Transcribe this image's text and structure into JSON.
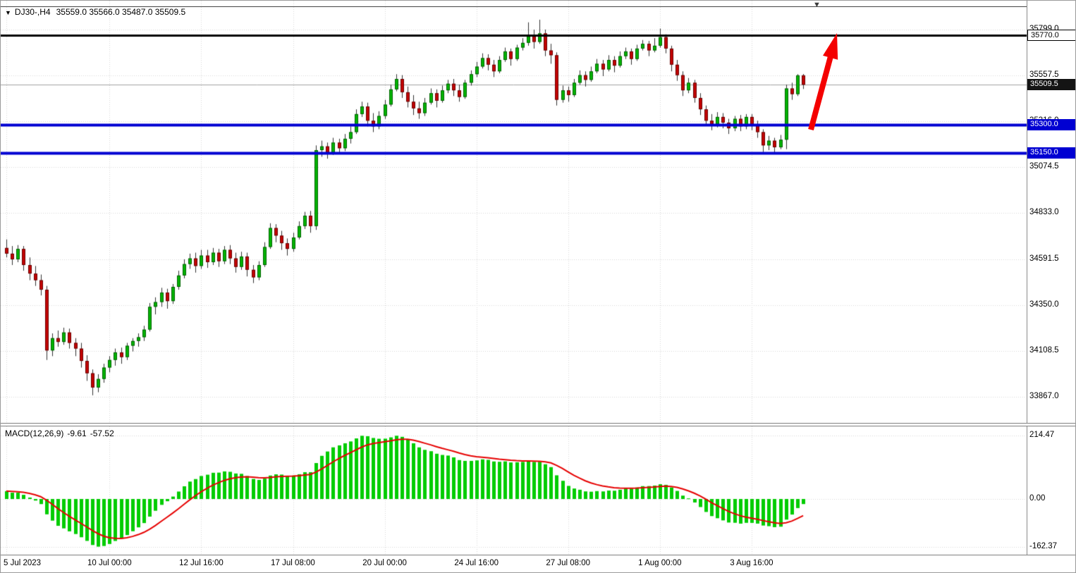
{
  "header": {
    "collapse_icon": "▼",
    "symbol": "DJ30-,H4",
    "ohlc": "35559.0 35566.0 35487.0 35509.5"
  },
  "macd": {
    "title": "MACD(12,26,9)",
    "value_main": "-9.61",
    "value_signal": "-57.52"
  },
  "chart_data": {
    "type": "candlestick+macd",
    "symbol": "DJ30-",
    "timeframe": "H4",
    "first_x": 8,
    "bar_spacing": 8.13,
    "colors": {
      "up": "#00b400",
      "down": "#c40000",
      "wick": "#303030",
      "grid": "#d6d6d6",
      "hist": "#00cc00",
      "signal": "#e60000",
      "bid": "#a0a0a0",
      "support": "#0000d2",
      "resistance": "#000000",
      "arrow": "#f40000"
    },
    "price_pane": {
      "ylim": [
        33725,
        35952
      ],
      "grid_base": 33867.0,
      "grid_step": 241.5,
      "axis_labels": [
        "35799.0",
        "35557.5",
        "35316.0",
        "35074.5",
        "34833.0",
        "34591.5",
        "34350.0",
        "34108.5",
        "33867.0"
      ],
      "lines": [
        {
          "key": "resistance",
          "price": 35770.0,
          "label": "35770.0",
          "color": "#000000",
          "width": 3
        },
        {
          "key": "bid",
          "price": 35509.5,
          "label": "35509.5",
          "color": "#a0a0a0",
          "width": 1
        },
        {
          "key": "support1",
          "price": 35300.0,
          "label": "35300.0",
          "color": "#0000d2",
          "width": 4
        },
        {
          "key": "support2",
          "price": 35150.0,
          "label": "35150.0",
          "color": "#0000d2",
          "width": 4
        }
      ]
    },
    "macd_pane": {
      "ylim": [
        -188.3,
        245.4
      ],
      "params": "12,26,9",
      "axis_labels": [
        "214.47",
        "0.00",
        "-162.37"
      ]
    },
    "x_ticks": [
      {
        "i": 0,
        "label": "5 Jul 2023"
      },
      {
        "i": 18,
        "label": "10 Jul 00:00"
      },
      {
        "i": 34,
        "label": "12 Jul 16:00"
      },
      {
        "i": 50,
        "label": "17 Jul 08:00"
      },
      {
        "i": 66,
        "label": "20 Jul 00:00"
      },
      {
        "i": 82,
        "label": "24 Jul 16:00"
      },
      {
        "i": 98,
        "label": "27 Jul 08:00"
      },
      {
        "i": 114,
        "label": "1 Aug 00:00"
      },
      {
        "i": 130,
        "label": "3 Aug 16:00"
      }
    ],
    "candles": [
      [
        34650,
        34695,
        34600,
        34620
      ],
      [
        34620,
        34660,
        34560,
        34590
      ],
      [
        34590,
        34665,
        34575,
        34645
      ],
      [
        34645,
        34660,
        34530,
        34560
      ],
      [
        34560,
        34600,
        34480,
        34515
      ],
      [
        34515,
        34555,
        34450,
        34480
      ],
      [
        34480,
        34510,
        34400,
        34430
      ],
      [
        34430,
        34450,
        34060,
        34110
      ],
      [
        34110,
        34200,
        34080,
        34175
      ],
      [
        34175,
        34215,
        34130,
        34155
      ],
      [
        34155,
        34230,
        34140,
        34205
      ],
      [
        34205,
        34225,
        34120,
        34150
      ],
      [
        34150,
        34175,
        34080,
        34120
      ],
      [
        34120,
        34150,
        34020,
        34055
      ],
      [
        34055,
        34085,
        33950,
        33990
      ],
      [
        33990,
        34010,
        33874,
        33915
      ],
      [
        33915,
        33985,
        33890,
        33960
      ],
      [
        33960,
        34040,
        33940,
        34020
      ],
      [
        34020,
        34080,
        33995,
        34060
      ],
      [
        34060,
        34120,
        34030,
        34100
      ],
      [
        34100,
        34125,
        34040,
        34075
      ],
      [
        34075,
        34150,
        34060,
        34135
      ],
      [
        34135,
        34175,
        34105,
        34160
      ],
      [
        34160,
        34200,
        34130,
        34180
      ],
      [
        34180,
        34240,
        34160,
        34220
      ],
      [
        34220,
        34360,
        34210,
        34340
      ],
      [
        34340,
        34390,
        34300,
        34365
      ],
      [
        34365,
        34440,
        34340,
        34415
      ],
      [
        34415,
        34435,
        34330,
        34370
      ],
      [
        34370,
        34460,
        34355,
        34445
      ],
      [
        34445,
        34530,
        34430,
        34505
      ],
      [
        34505,
        34590,
        34490,
        34565
      ],
      [
        34565,
        34620,
        34540,
        34595
      ],
      [
        34595,
        34625,
        34520,
        34555
      ],
      [
        34555,
        34640,
        34540,
        34610
      ],
      [
        34610,
        34640,
        34545,
        34575
      ],
      [
        34575,
        34650,
        34560,
        34625
      ],
      [
        34625,
        34645,
        34550,
        34580
      ],
      [
        34580,
        34660,
        34565,
        34640
      ],
      [
        34640,
        34665,
        34565,
        34595
      ],
      [
        34595,
        34625,
        34520,
        34550
      ],
      [
        34550,
        34630,
        34535,
        34605
      ],
      [
        34605,
        34625,
        34500,
        34535
      ],
      [
        34535,
        34560,
        34465,
        34495
      ],
      [
        34495,
        34580,
        34480,
        34560
      ],
      [
        34560,
        34680,
        34550,
        34655
      ],
      [
        34655,
        34780,
        34645,
        34755
      ],
      [
        34755,
        34775,
        34680,
        34715
      ],
      [
        34715,
        34740,
        34640,
        34675
      ],
      [
        34675,
        34700,
        34610,
        34645
      ],
      [
        34645,
        34730,
        34630,
        34705
      ],
      [
        34705,
        34790,
        34695,
        34765
      ],
      [
        34765,
        34840,
        34750,
        34820
      ],
      [
        34820,
        34845,
        34730,
        34765
      ],
      [
        34765,
        35190,
        34745,
        35165
      ],
      [
        35165,
        35215,
        35130,
        35185
      ],
      [
        35185,
        35205,
        35120,
        35150
      ],
      [
        35150,
        35230,
        35140,
        35205
      ],
      [
        35205,
        35225,
        35150,
        35175
      ],
      [
        35175,
        35250,
        35160,
        35225
      ],
      [
        35225,
        35290,
        35200,
        35260
      ],
      [
        35260,
        35380,
        35250,
        35355
      ],
      [
        35355,
        35420,
        35340,
        35395
      ],
      [
        35395,
        35415,
        35290,
        35320
      ],
      [
        35320,
        35360,
        35260,
        35290
      ],
      [
        35290,
        35370,
        35275,
        35345
      ],
      [
        35345,
        35430,
        35330,
        35405
      ],
      [
        35405,
        35510,
        35395,
        35485
      ],
      [
        35485,
        35565,
        35475,
        35540
      ],
      [
        35540,
        35560,
        35440,
        35470
      ],
      [
        35470,
        35500,
        35390,
        35420
      ],
      [
        35420,
        35455,
        35350,
        35385
      ],
      [
        35385,
        35420,
        35330,
        35360
      ],
      [
        35360,
        35440,
        35345,
        35415
      ],
      [
        35415,
        35490,
        35405,
        35465
      ],
      [
        35465,
        35485,
        35390,
        35425
      ],
      [
        35425,
        35505,
        35415,
        35480
      ],
      [
        35480,
        35535,
        35465,
        35515
      ],
      [
        35515,
        35540,
        35450,
        35480
      ],
      [
        35480,
        35510,
        35420,
        35445
      ],
      [
        35445,
        35535,
        35435,
        35520
      ],
      [
        35520,
        35585,
        35505,
        35565
      ],
      [
        35565,
        35630,
        35550,
        35605
      ],
      [
        35605,
        35675,
        35595,
        35650
      ],
      [
        35650,
        35670,
        35585,
        35615
      ],
      [
        35615,
        35640,
        35550,
        35580
      ],
      [
        35580,
        35660,
        35570,
        35640
      ],
      [
        35640,
        35705,
        35630,
        35685
      ],
      [
        35685,
        35700,
        35610,
        35645
      ],
      [
        35645,
        35720,
        35635,
        35705
      ],
      [
        35705,
        35755,
        35690,
        35730
      ],
      [
        35730,
        35838,
        35715,
        35765
      ],
      [
        35765,
        35800,
        35700,
        35735
      ],
      [
        35735,
        35852,
        35725,
        35780
      ],
      [
        35780,
        35800,
        35660,
        35690
      ],
      [
        35690,
        35725,
        35620,
        35665
      ],
      [
        35665,
        35680,
        35400,
        35430
      ],
      [
        35430,
        35505,
        35415,
        35480
      ],
      [
        35480,
        35500,
        35420,
        35455
      ],
      [
        35455,
        35540,
        35445,
        35520
      ],
      [
        35520,
        35585,
        35510,
        35560
      ],
      [
        35560,
        35580,
        35500,
        35535
      ],
      [
        35535,
        35605,
        35525,
        35580
      ],
      [
        35580,
        35645,
        35570,
        35620
      ],
      [
        35620,
        35640,
        35555,
        35590
      ],
      [
        35590,
        35665,
        35580,
        35640
      ],
      [
        35640,
        35660,
        35575,
        35610
      ],
      [
        35610,
        35685,
        35600,
        35660
      ],
      [
        35660,
        35705,
        35645,
        35685
      ],
      [
        35685,
        35700,
        35615,
        35645
      ],
      [
        35645,
        35720,
        35635,
        35700
      ],
      [
        35700,
        35745,
        35690,
        35725
      ],
      [
        35725,
        35740,
        35660,
        35690
      ],
      [
        35690,
        35755,
        35680,
        35715
      ],
      [
        35715,
        35805,
        35705,
        35760
      ],
      [
        35760,
        35775,
        35675,
        35700
      ],
      [
        35700,
        35715,
        35580,
        35615
      ],
      [
        35615,
        35640,
        35530,
        35560
      ],
      [
        35560,
        35580,
        35450,
        35480
      ],
      [
        35480,
        35545,
        35465,
        35520
      ],
      [
        35520,
        35535,
        35415,
        35440
      ],
      [
        35440,
        35465,
        35350,
        35380
      ],
      [
        35380,
        35400,
        35295,
        35320
      ],
      [
        35320,
        35355,
        35270,
        35300
      ],
      [
        35300,
        35365,
        35285,
        35340
      ],
      [
        35340,
        35360,
        35280,
        35310
      ],
      [
        35310,
        35330,
        35250,
        35280
      ],
      [
        35280,
        35345,
        35265,
        35330
      ],
      [
        35330,
        35350,
        35265,
        35290
      ],
      [
        35290,
        35355,
        35275,
        35340
      ],
      [
        35340,
        35355,
        35270,
        35300
      ],
      [
        35300,
        35320,
        35230,
        35260
      ],
      [
        35260,
        35275,
        35155,
        35190
      ],
      [
        35190,
        35240,
        35165,
        35215
      ],
      [
        35215,
        35230,
        35150,
        35180
      ],
      [
        35180,
        35245,
        35170,
        35220
      ],
      [
        35220,
        35510,
        35170,
        35490
      ],
      [
        35490,
        35520,
        35430,
        35460
      ],
      [
        35460,
        35565,
        35450,
        35559
      ],
      [
        35559,
        35566,
        35487,
        35509.5
      ]
    ]
  }
}
